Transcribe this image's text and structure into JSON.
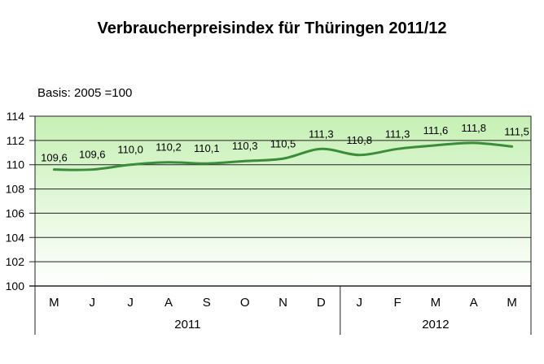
{
  "chart_data": {
    "type": "line",
    "title": "Verbraucherpreisindex für Thüringen 2011/12",
    "subtitle": "Basis:  2005 =100",
    "categories": [
      "M",
      "J",
      "J",
      "A",
      "S",
      "O",
      "N",
      "D",
      "J",
      "F",
      "M",
      "A",
      "M"
    ],
    "groups": [
      {
        "label": "2011",
        "count": 8
      },
      {
        "label": "2012",
        "count": 5
      }
    ],
    "values": [
      109.6,
      109.6,
      110.0,
      110.2,
      110.1,
      110.3,
      110.5,
      111.3,
      110.8,
      111.3,
      111.6,
      111.8,
      111.5
    ],
    "data_labels": [
      "109,6",
      "109,6",
      "110,0",
      "110,2",
      "110,1",
      "110,3",
      "110,5",
      "111,3",
      "110,8",
      "111,3",
      "111,6",
      "111,8",
      "111,5"
    ],
    "yticks": [
      "100",
      "102",
      "104",
      "106",
      "108",
      "110",
      "112",
      "114"
    ],
    "ylim": [
      100,
      114
    ],
    "grid": true,
    "line_color": "#3b8c3b",
    "background_gradient": [
      "#c6f0b4",
      "#ffffff"
    ],
    "xlabel": "",
    "ylabel": ""
  }
}
